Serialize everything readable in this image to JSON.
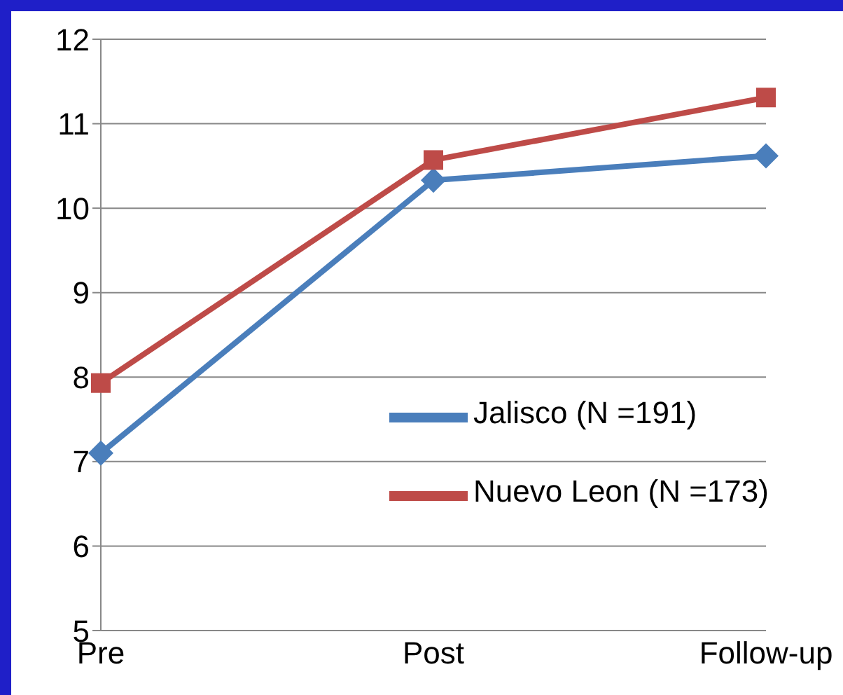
{
  "chart_data": {
    "type": "line",
    "categories": [
      "Pre",
      "Post",
      "Follow-up"
    ],
    "series": [
      {
        "name": "Jalisco (N =191)",
        "color": "#4a7ebb",
        "values": [
          7.1,
          10.33,
          10.62
        ],
        "marker": "diamond"
      },
      {
        "name": "Nuevo Leon (N =173)",
        "color": "#be4b48",
        "values": [
          7.93,
          10.57,
          11.31
        ],
        "marker": "square"
      }
    ],
    "ylim": [
      5,
      12
    ],
    "yticks": [
      5,
      6,
      7,
      8,
      9,
      10,
      11,
      12
    ],
    "grid": "y",
    "legend": "right"
  }
}
